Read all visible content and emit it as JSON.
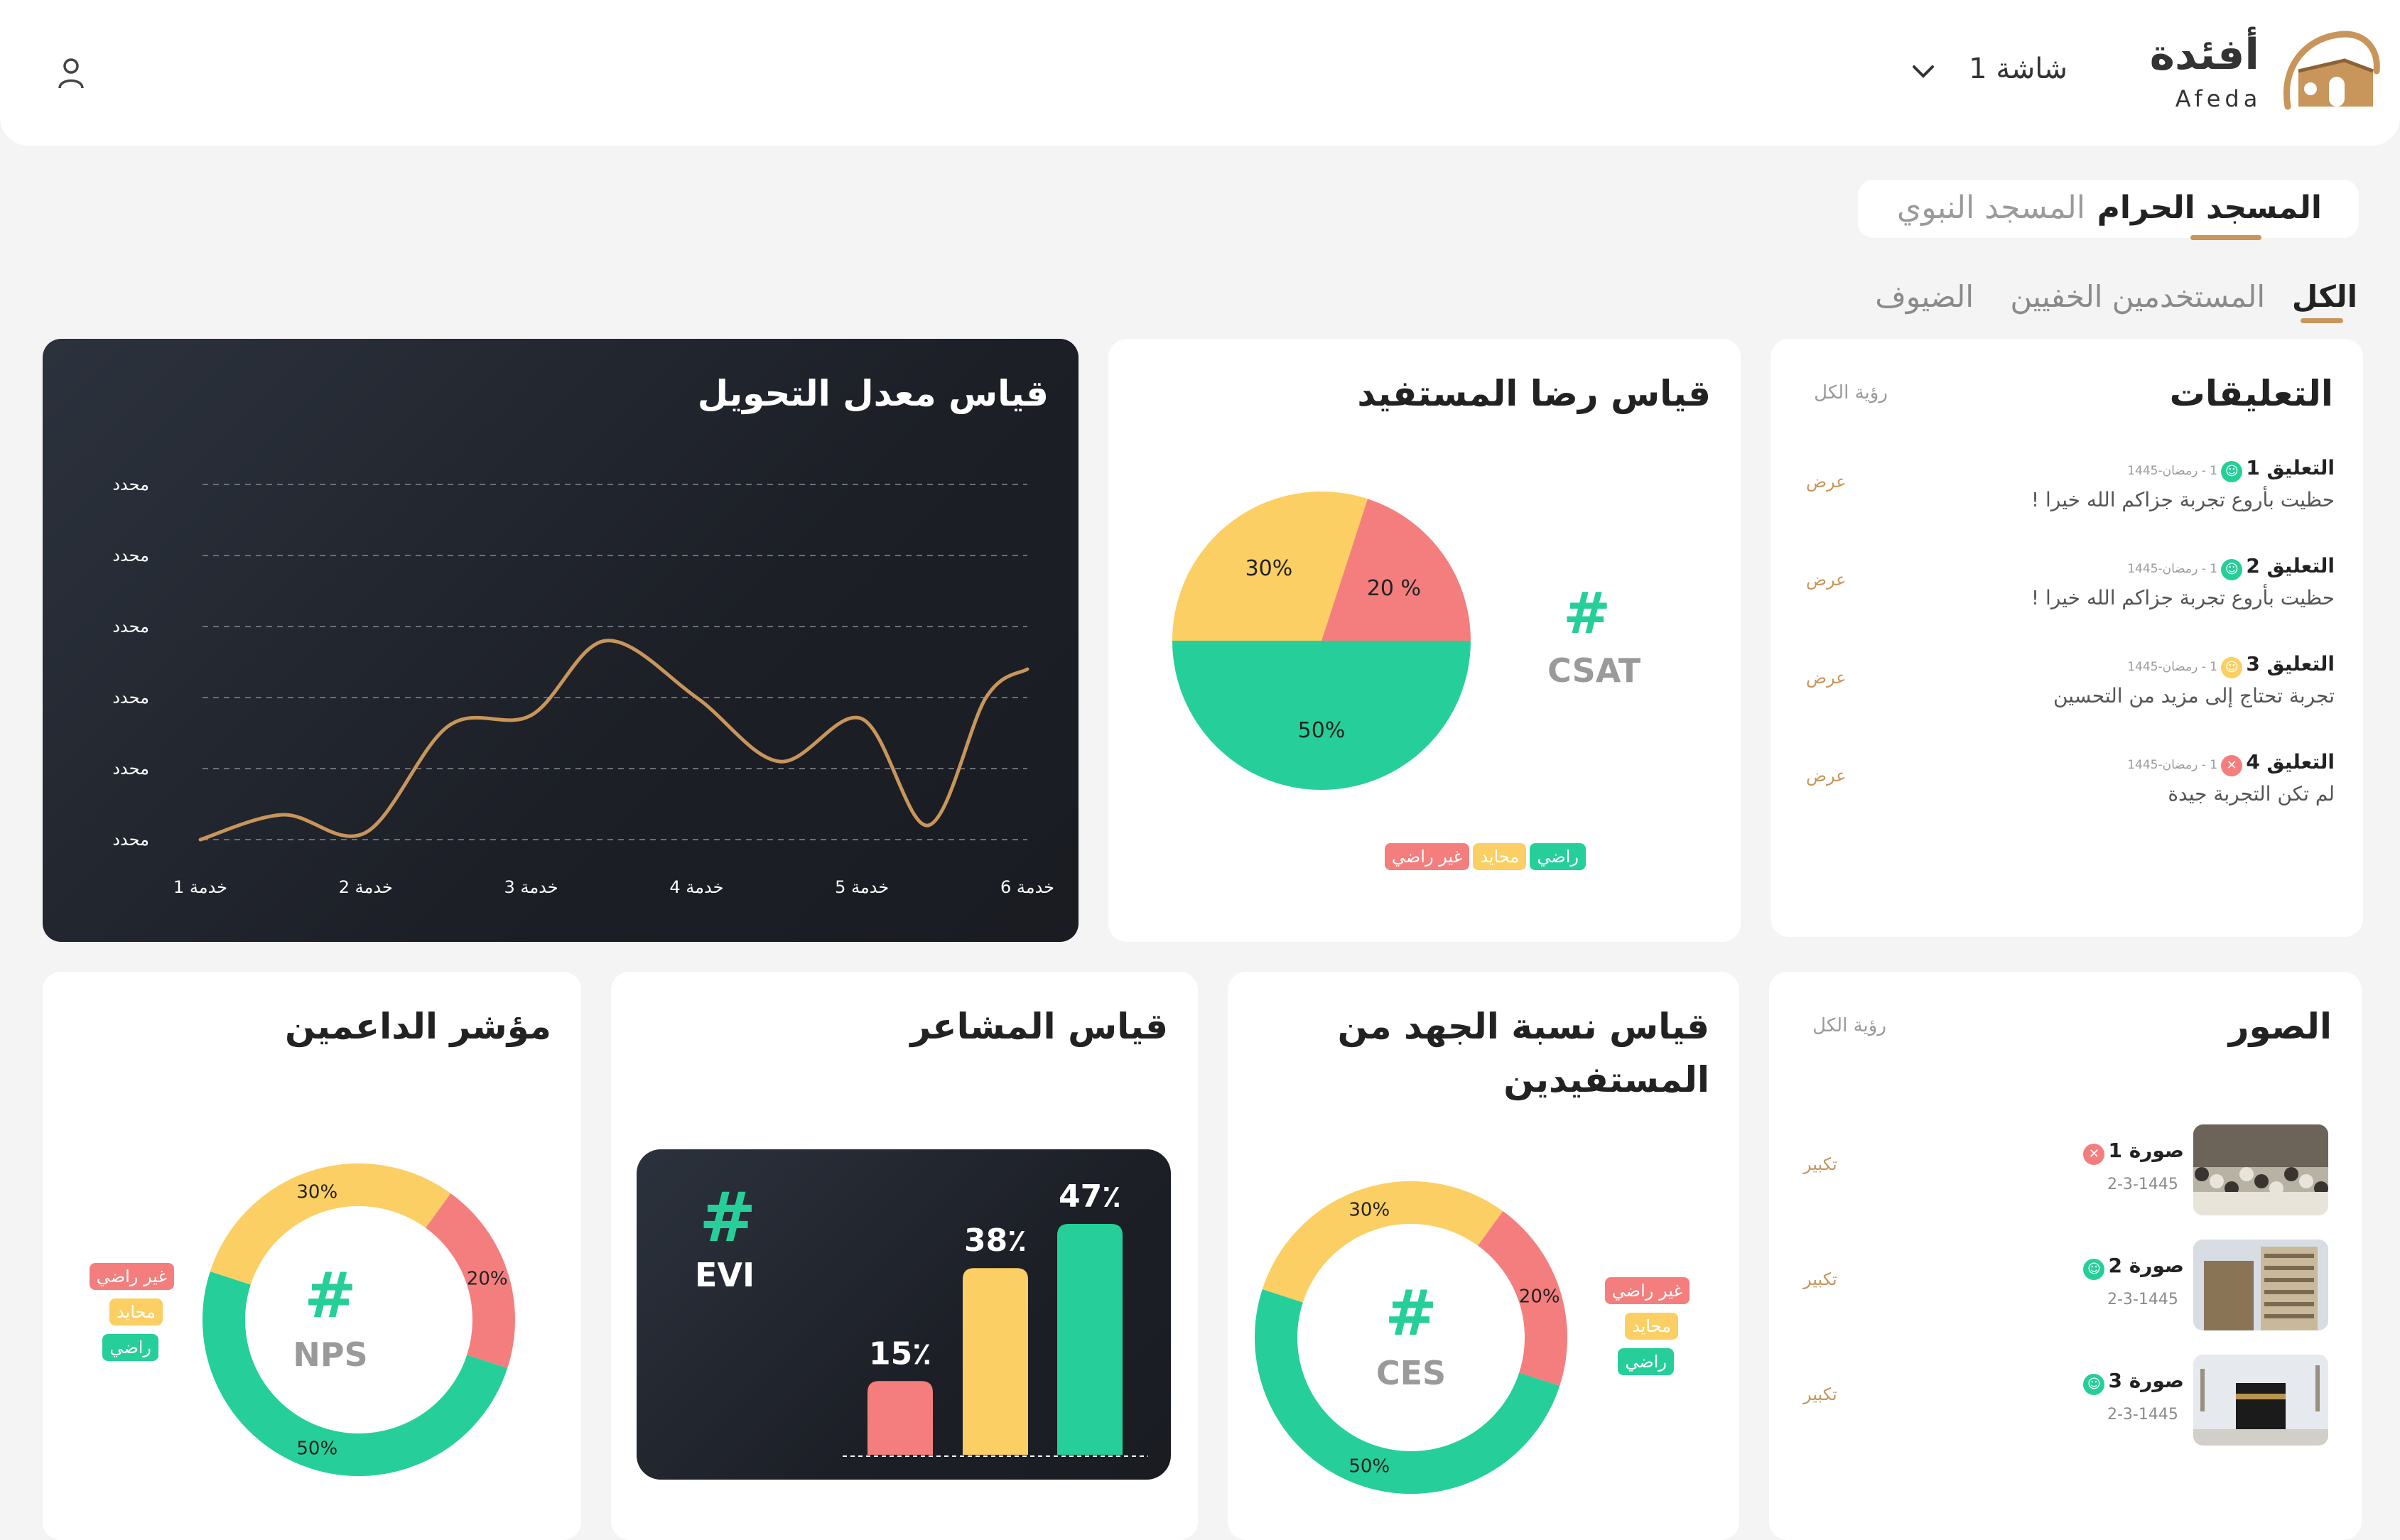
{
  "header": {
    "logo_arabic": "أفئدة",
    "logo_latin": "Afeda",
    "screen_selector": "شاشة 1"
  },
  "mosque_tabs": [
    "المسجد الحرام",
    "المسجد النبوي"
  ],
  "user_tabs": [
    "الكل",
    "المستخدمين الخفيين",
    "الضيوف"
  ],
  "comments": {
    "title": "التعليقات",
    "see_all": "رؤية الكل",
    "view_label": "عرض",
    "items": [
      {
        "name": "التعليق 1",
        "date": "1 - رمضان-1445",
        "text": "حظيت بأروع تجربة جزاكم الله خيرا !",
        "mood": "happy"
      },
      {
        "name": "التعليق 2",
        "date": "1 - رمضان-1445",
        "text": "حظيت بأروع تجربة جزاكم الله خيرا !",
        "mood": "happy"
      },
      {
        "name": "التعليق 3",
        "date": "1 - رمضان-1445",
        "text": "تجربة تحتاج إلى مزيد من التحسين",
        "mood": "neutral"
      },
      {
        "name": "التعليق 4",
        "date": "1 - رمضان-1445",
        "text": "لم تكن التجربة جيدة",
        "mood": "sad"
      }
    ]
  },
  "images": {
    "title": "الصور",
    "see_all": "رؤية الكل",
    "enlarge_label": "تكبير",
    "items": [
      {
        "name": "صورة 1",
        "date": "2-3-1445",
        "mood": "sad"
      },
      {
        "name": "صورة 2",
        "date": "2-3-1445",
        "mood": "happy"
      },
      {
        "name": "صورة 3",
        "date": "2-3-1445",
        "mood": "happy"
      }
    ]
  },
  "legend": {
    "unsatisfied": "غير راضي",
    "neutral": "محايد",
    "satisfied": "راضي"
  },
  "colors": {
    "red": "#f47e7e",
    "yellow": "#fbcf63",
    "green": "#26cf99",
    "gold": "#c8955b",
    "dark": "#1e2127"
  },
  "chart_data": [
    {
      "type": "line",
      "title": "قياس معدل التحويل",
      "categories": [
        "خدمة 1",
        "خدمة 2",
        "خدمة 3",
        "خدمة 4",
        "خدمة 5",
        "خدمة 6"
      ],
      "y_tick_labels": [
        "محدد",
        "محدد",
        "محدد",
        "محدد",
        "محدد",
        "محدد"
      ],
      "ylim": [
        0,
        5
      ],
      "series": [
        {
          "x": [
            0.0,
            0.5,
            1.0,
            1.5,
            2.0,
            2.45,
            3.0,
            3.5,
            4.0,
            4.4,
            4.75,
            5.0
          ],
          "values": [
            0.0,
            0.35,
            0.1,
            1.6,
            1.75,
            2.8,
            2.0,
            1.1,
            1.7,
            0.2,
            2.0,
            2.4
          ]
        }
      ],
      "grid": true
    },
    {
      "type": "pie",
      "title": "قياس رضا المستفيد",
      "center_label": "CSAT",
      "labels": [
        "غير راضي",
        "محايد",
        "راضي"
      ],
      "values": [
        20,
        30,
        50
      ],
      "value_labels": [
        "20 %",
        "30%",
        "50%"
      ]
    },
    {
      "type": "pie",
      "title": "مؤشر الداعمين",
      "center_label": "NPS",
      "labels": [
        "غير راضي",
        "محايد",
        "راضي"
      ],
      "values": [
        20,
        30,
        50
      ],
      "value_labels": [
        "20%",
        "30%",
        "50%"
      ]
    },
    {
      "type": "bar",
      "title": "قياس المشاعر",
      "center_label": "EVI",
      "values": [
        15,
        38,
        47
      ],
      "value_labels": [
        "15٪",
        "38٪",
        "47٪"
      ]
    },
    {
      "type": "pie",
      "title": "قياس نسبة الجهد من المستفيدين",
      "center_label": "CES",
      "labels": [
        "غير راضي",
        "محايد",
        "راضي"
      ],
      "values": [
        20,
        30,
        50
      ],
      "value_labels": [
        "20%",
        "30%",
        "50%"
      ]
    }
  ]
}
